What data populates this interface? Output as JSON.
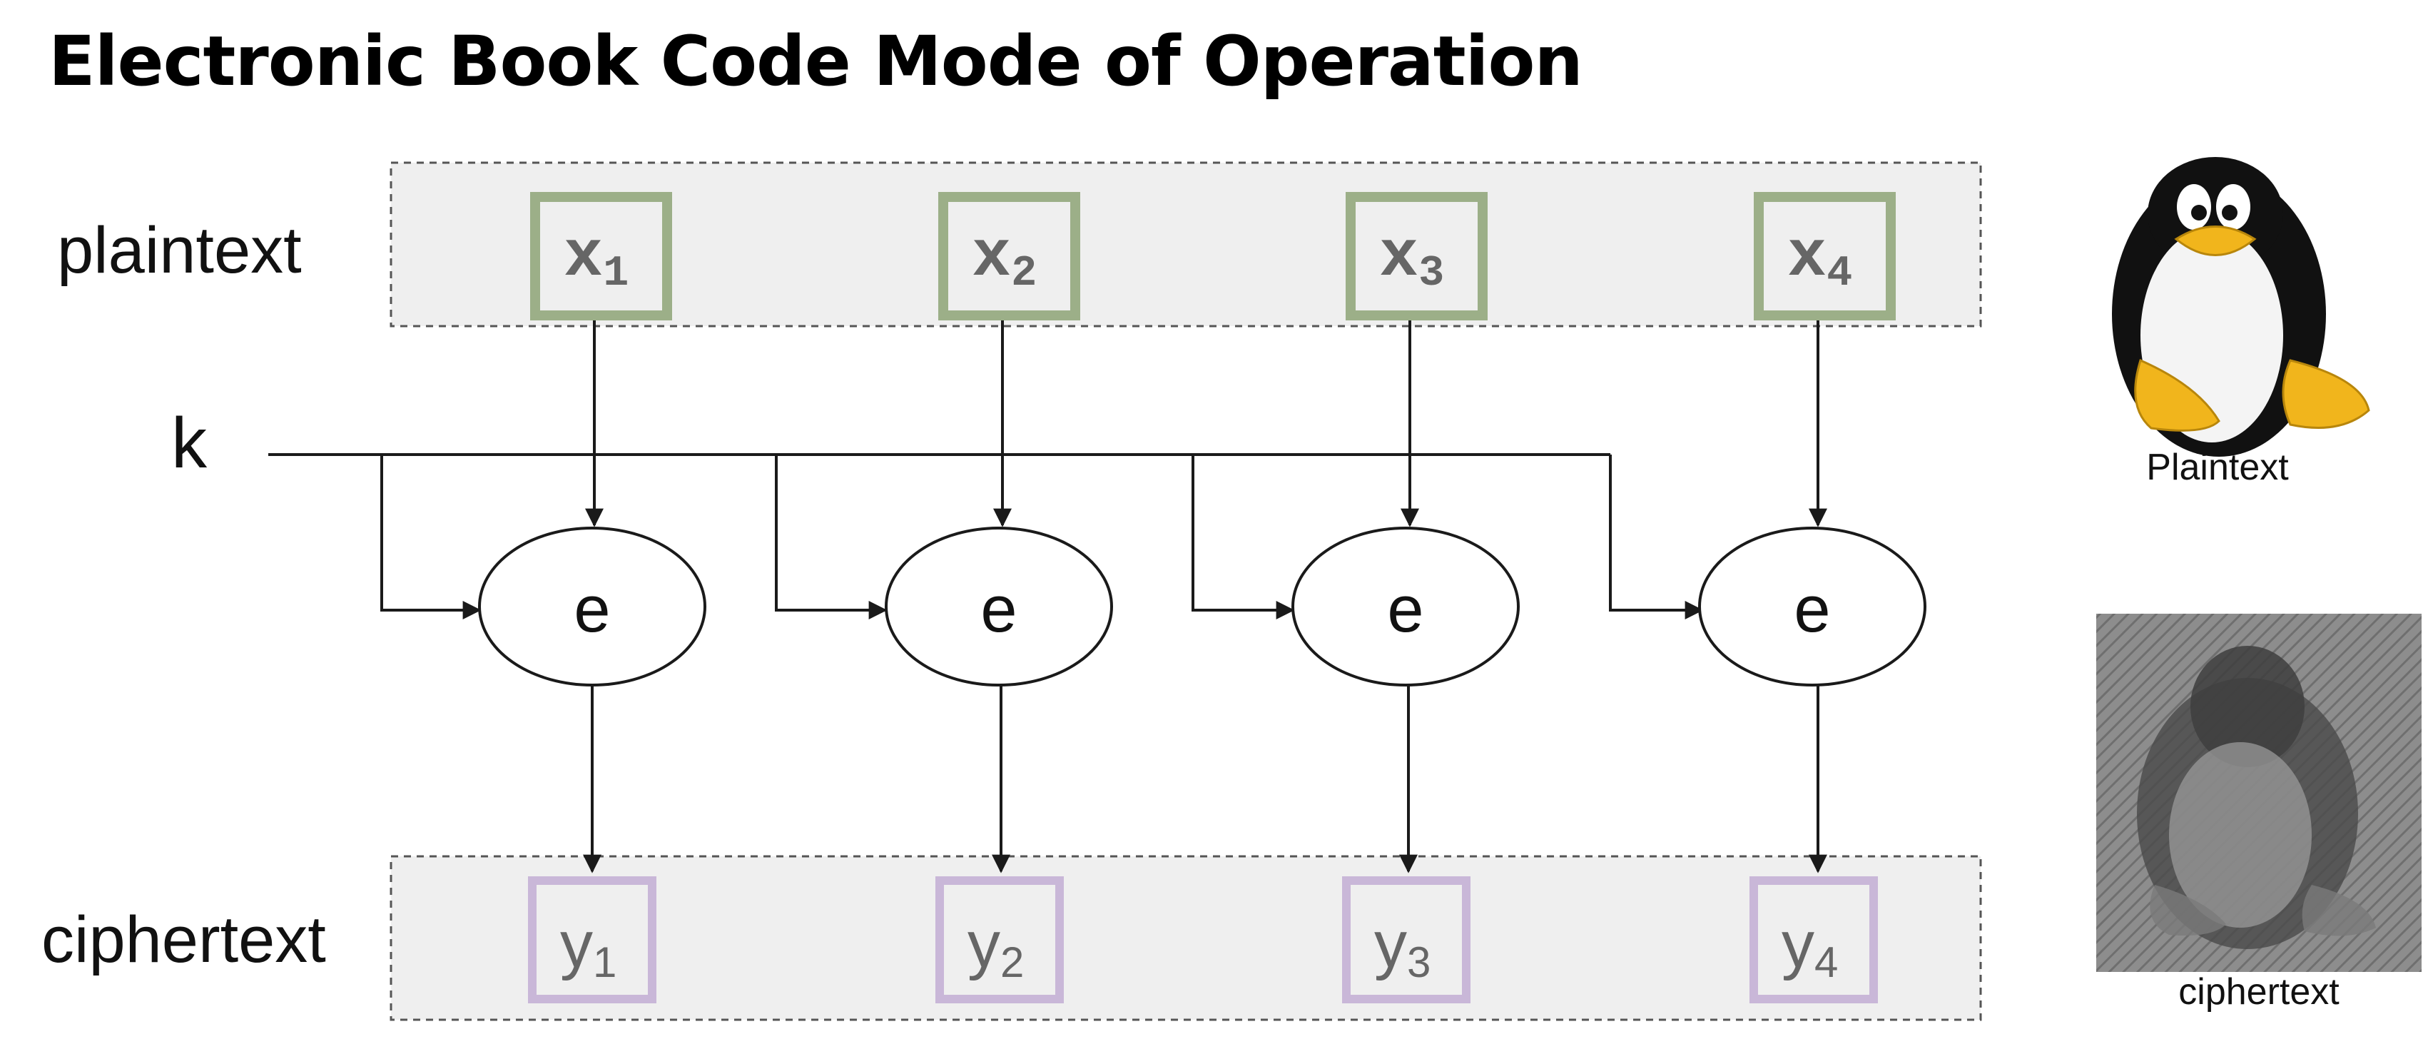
{
  "title": "Electronic Book Code Mode of Operation",
  "labels": {
    "plaintext": "plaintext",
    "ciphertext": "ciphertext",
    "key": "k"
  },
  "inputs": [
    {
      "base": "x",
      "sub": "1"
    },
    {
      "base": "x",
      "sub": "2"
    },
    {
      "base": "x",
      "sub": "3"
    },
    {
      "base": "x",
      "sub": "4"
    }
  ],
  "encrypt_label": "e",
  "outputs": [
    {
      "base": "y",
      "sub": "1"
    },
    {
      "base": "y",
      "sub": "2"
    },
    {
      "base": "y",
      "sub": "3"
    },
    {
      "base": "y",
      "sub": "4"
    }
  ],
  "images": {
    "plaintext_caption": "Plaintext",
    "ciphertext_caption": "ciphertext"
  },
  "colors": {
    "input_box": "#9caf88",
    "output_box": "#c9b7d8",
    "band_fill": "#efefef",
    "line": "#1a1a1a"
  }
}
